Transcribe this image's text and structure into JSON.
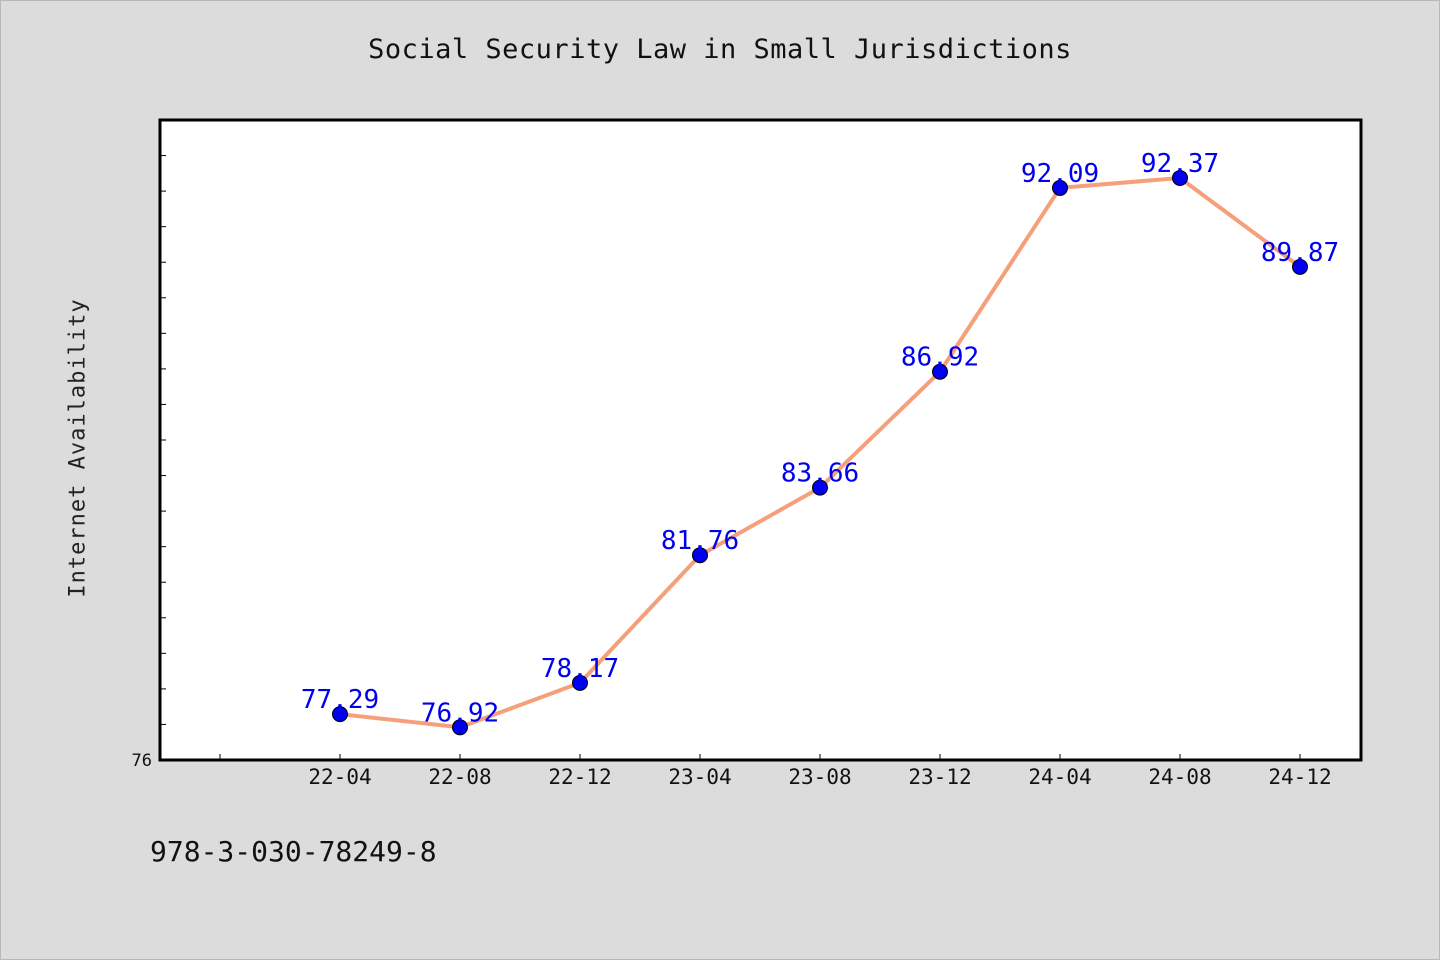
{
  "chart_data": {
    "type": "line",
    "title": "Social Security Law in Small Jurisdictions",
    "xlabel": "",
    "ylabel": "Internet Availability",
    "categories": [
      "22-04",
      "22-08",
      "22-12",
      "23-04",
      "23-08",
      "23-12",
      "24-04",
      "24-08",
      "24-12"
    ],
    "series": [
      {
        "values": [
          77.29,
          76.92,
          78.17,
          81.76,
          83.66,
          86.92,
          92.09,
          92.37,
          89.87
        ]
      }
    ],
    "y_tick_labels": [
      "76"
    ],
    "ylim": [
      76,
      94
    ],
    "y_minor_tick_step": 1,
    "grid": false,
    "data_labels": true,
    "colors": {
      "line": "#f5a07a",
      "marker": "#0000ee",
      "label": "#0000ee",
      "background": "#dcdcdc",
      "plot_background": "#ffffff"
    }
  },
  "footer": {
    "identifier": "978-3-030-78249-8"
  }
}
